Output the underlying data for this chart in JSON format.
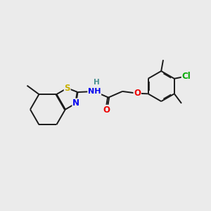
{
  "background_color": "#ebebeb",
  "bond_color": "#1a1a1a",
  "atom_colors": {
    "S": "#c8b000",
    "N": "#0000ee",
    "O": "#ee0000",
    "Cl": "#00aa00",
    "H_label": "#4a9090"
  },
  "bond_width": 1.4,
  "dbo": 0.018,
  "figsize": [
    3.0,
    3.0
  ],
  "dpi": 100
}
